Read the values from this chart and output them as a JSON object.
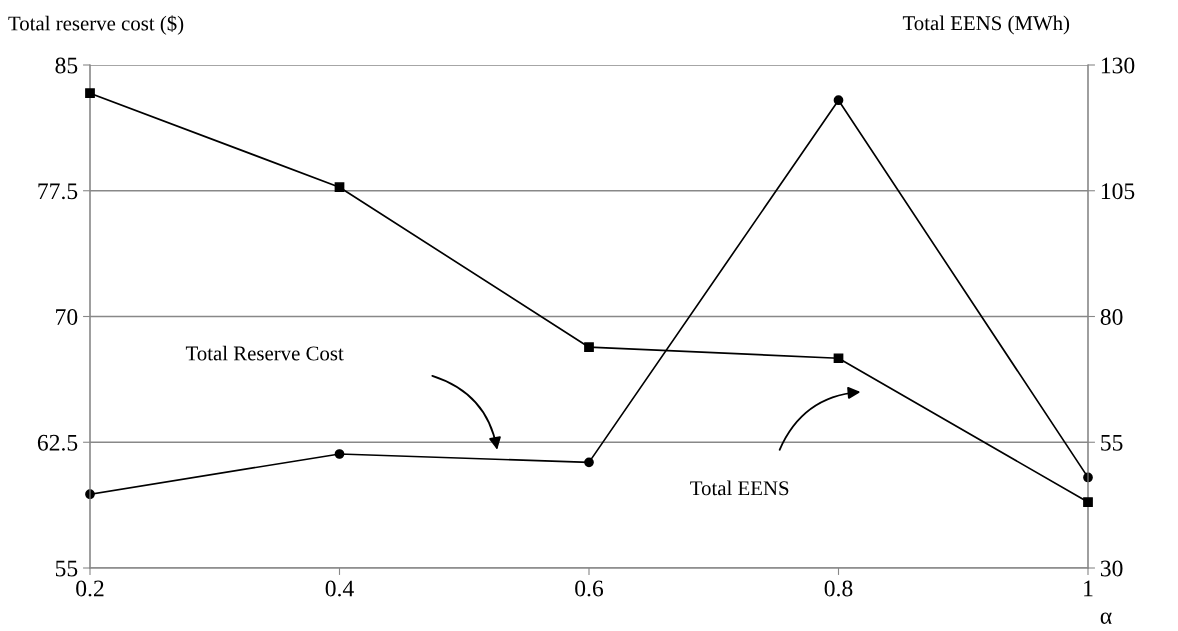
{
  "chart_data": {
    "type": "line",
    "xlabel": "α",
    "ylabel": "Total reserve cost ($)",
    "y2label": "Total EENS (MWh)",
    "x": [
      0.2,
      0.4,
      0.6,
      0.8,
      1
    ],
    "series": [
      {
        "color": "#000000",
        "marker": "circle",
        "values": [
          59.4,
          61.8,
          61.3,
          82.9,
          60.4
        ]
      },
      {
        "color": "#000000",
        "marker": "square",
        "axis": "y2",
        "values": [
          124.4,
          105.7,
          73.9,
          71.7,
          43.1
        ]
      }
    ],
    "xlim": [
      0.2,
      1
    ],
    "xticks": [
      0.2,
      0.4,
      0.6,
      0.8,
      1
    ],
    "ylim": [
      55,
      85
    ],
    "yticks": [
      55,
      62.5,
      70,
      77.5,
      85
    ],
    "y2lim": [
      30,
      130
    ],
    "y2ticks": [
      30,
      55,
      80,
      105,
      130
    ],
    "grid": "y",
    "annotations": [
      "Total Reserve Cost",
      "Total EENS"
    ]
  }
}
